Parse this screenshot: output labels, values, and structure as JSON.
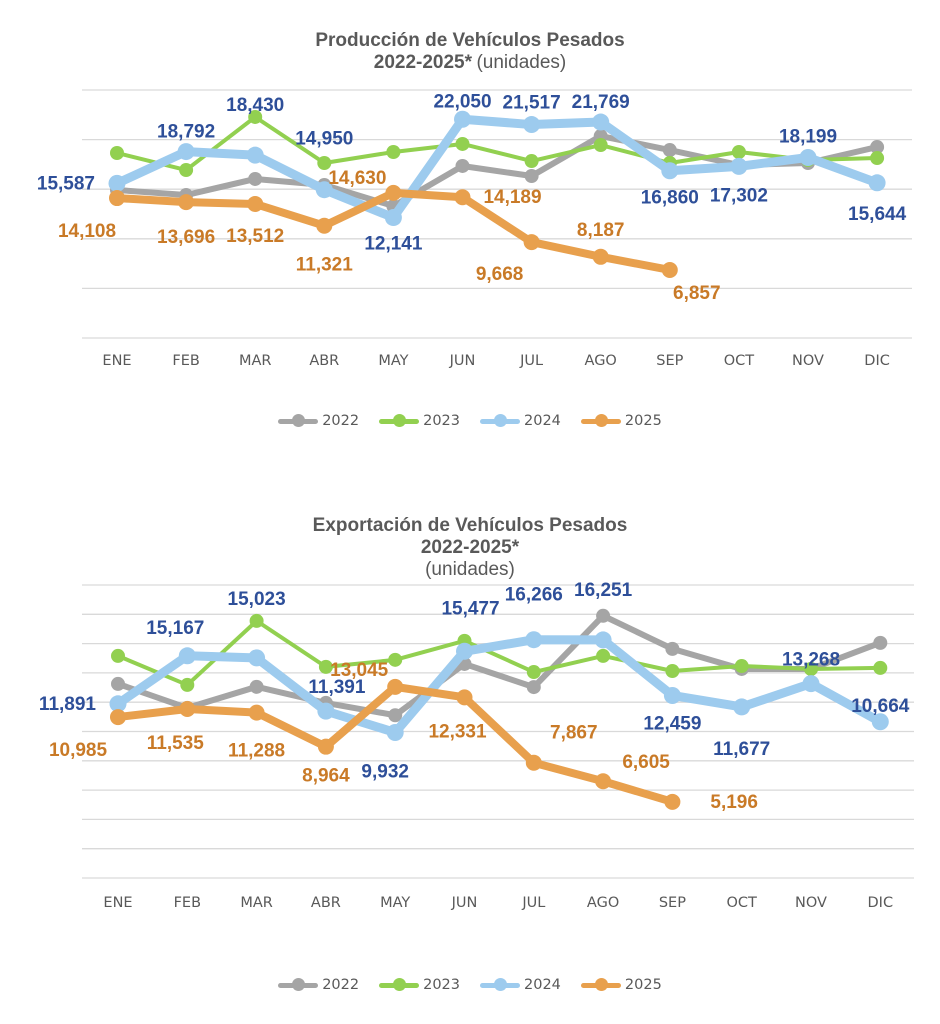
{
  "colors": {
    "2022": "#a5a5a5",
    "2023": "#92d050",
    "2024": "#9dcbee",
    "2025": "#e8a04d",
    "label_2024": "#2e4f99",
    "label_2025": "#c97a27",
    "title": "#595959",
    "axis_text": "#595959",
    "grid": "#d9d9d9"
  },
  "chart_data": [
    {
      "type": "line",
      "title": "Producción de Vehículos Pesados",
      "title_line2": "2022-2025*",
      "unit_label": "(unidades)",
      "xlabel": "",
      "ylabel": "",
      "categories": [
        "ENE",
        "FEB",
        "MAR",
        "ABR",
        "MAY",
        "JUN",
        "JUL",
        "AGO",
        "SEP",
        "OCT",
        "NOV",
        "DIC"
      ],
      "ylim": [
        0,
        25000
      ],
      "ytick_step": 5000,
      "grid": true,
      "y_tick_labels_visible": false,
      "legend_position": "bottom",
      "series": [
        {
          "name": "2022",
          "values": [
            14920,
            14410,
            16030,
            15420,
            13300,
            17340,
            16330,
            20360,
            18950,
            17440,
            17640,
            19250
          ],
          "labeled": false
        },
        {
          "name": "2023",
          "values": [
            18650,
            16930,
            22280,
            17640,
            18750,
            19560,
            17840,
            19450,
            17640,
            18750,
            17940,
            18140
          ],
          "labeled": false
        },
        {
          "name": "2024",
          "values": [
            15587,
            18792,
            18430,
            14950,
            12141,
            22050,
            21517,
            21769,
            16860,
            17302,
            18199,
            15644
          ],
          "labeled": true,
          "value_labels": [
            "15,587",
            "18,792",
            "18,430",
            "14,950",
            "12,141",
            "22,050",
            "21,517",
            "21,769",
            "16,860",
            "17,302",
            "18,199",
            "15,644"
          ]
        },
        {
          "name": "2025",
          "values": [
            14108,
            13696,
            13512,
            11321,
            14630,
            14189,
            9668,
            8187,
            6857,
            null,
            null,
            null
          ],
          "labeled": true,
          "value_labels": [
            "14,108",
            "13,696",
            "13,512",
            "11,321",
            "14,630",
            "14,189",
            "9,668",
            "8,187",
            "6,857",
            null,
            null,
            null
          ]
        }
      ]
    },
    {
      "type": "line",
      "title": "Exportación de Vehículos Pesados",
      "title_line2": "2022-2025*",
      "unit_label": "(unidades)",
      "xlabel": "",
      "ylabel": "",
      "categories": [
        "ENE",
        "FEB",
        "MAR",
        "ABR",
        "MAY",
        "JUN",
        "JUL",
        "AGO",
        "SEP",
        "OCT",
        "NOV",
        "DIC"
      ],
      "ylim": [
        0,
        20000
      ],
      "ytick_step": 2000,
      "grid": true,
      "y_tick_labels_visible": false,
      "legend_position": "bottom",
      "series": [
        {
          "name": "2022",
          "values": [
            13250,
            11610,
            13050,
            11950,
            11110,
            14610,
            13030,
            17900,
            15640,
            14270,
            14270,
            16050
          ],
          "labeled": false
        },
        {
          "name": "2023",
          "values": [
            15160,
            13180,
            17550,
            14410,
            14890,
            16190,
            14060,
            15160,
            14130,
            14470,
            14270,
            14340
          ],
          "labeled": false
        },
        {
          "name": "2024",
          "values": [
            11891,
            15167,
            15023,
            11391,
            9932,
            15477,
            16266,
            16251,
            12459,
            11677,
            13268,
            10664
          ],
          "labeled": true,
          "value_labels": [
            "11,891",
            "15,167",
            "15,023",
            "11,391",
            "9,932",
            "15,477",
            "16,266",
            "16,251",
            "12,459",
            "11,677",
            "13,268",
            "10,664"
          ]
        },
        {
          "name": "2025",
          "values": [
            10985,
            11535,
            11288,
            8964,
            13045,
            12331,
            7867,
            6605,
            5196,
            null,
            null,
            null
          ],
          "labeled": true,
          "value_labels": [
            "10,985",
            "11,535",
            "11,288",
            "8,964",
            "13,045",
            "12,331",
            "7,867",
            "6,605",
            "5,196",
            null,
            null,
            null
          ]
        }
      ]
    }
  ],
  "legend": [
    "2022",
    "2023",
    "2024",
    "2025"
  ]
}
